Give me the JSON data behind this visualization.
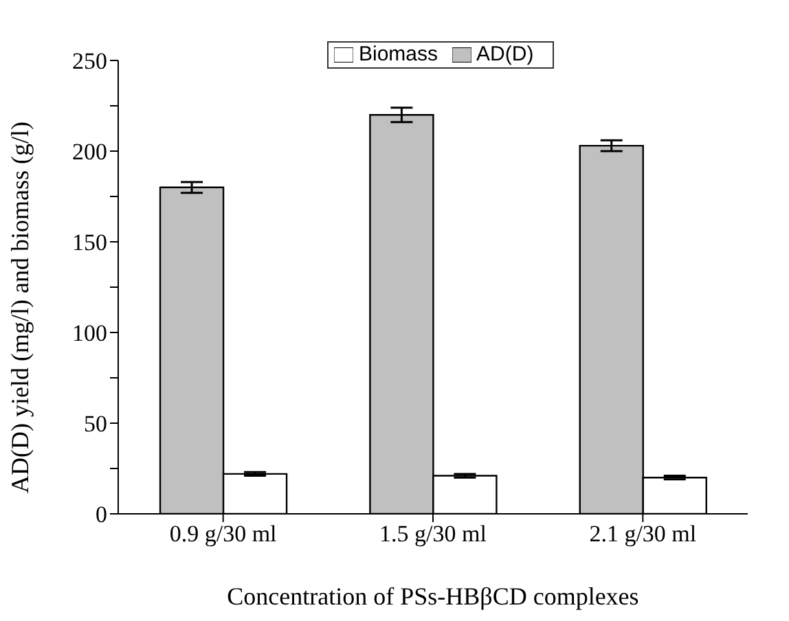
{
  "chart_data": {
    "type": "bar",
    "xlabel": "Concentration of PSs-HBβCD complexes",
    "ylabel": "AD(D) yield (mg/l) and biomass (g/l)",
    "categories": [
      "0.9 g/30 ml",
      "1.5 g/30 ml",
      "2.1 g/30 ml"
    ],
    "series": [
      {
        "name": "Biomass",
        "color": "#ffffff",
        "values": [
          22,
          21,
          20
        ],
        "errors": [
          1,
          1,
          1
        ]
      },
      {
        "name": "AD(D)",
        "color": "#c0c0c0",
        "values": [
          180,
          220,
          203
        ],
        "errors": [
          3,
          4,
          3
        ]
      }
    ],
    "ylim": [
      0,
      250
    ],
    "yticks": [
      0,
      {
        "value": 25,
        "label": null
      },
      50,
      {
        "value": 75,
        "label": null
      },
      100,
      {
        "value": 125,
        "label": null
      },
      150,
      {
        "value": 175,
        "label": null
      },
      200,
      {
        "value": 225,
        "label": null
      },
      250
    ],
    "legend": "top",
    "grid": false
  }
}
